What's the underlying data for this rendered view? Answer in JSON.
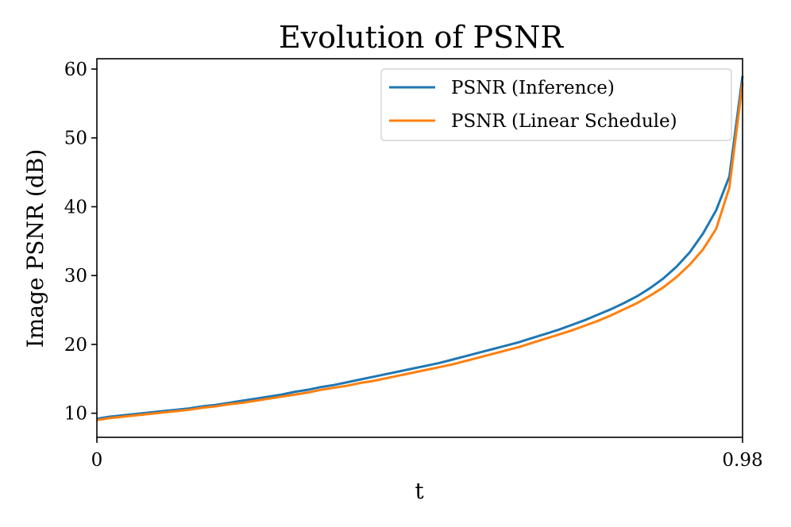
{
  "chart_data": {
    "type": "line",
    "title": "Evolution of PSNR",
    "xlabel": "t",
    "ylabel": "Image PSNR (dB)",
    "xlim": [
      0,
      0.98
    ],
    "ylim": [
      6.5,
      61.5
    ],
    "x_ticks": [
      {
        "value": 0,
        "label": "0"
      },
      {
        "value": 0.98,
        "label": "0.98"
      }
    ],
    "y_ticks": [
      {
        "value": 10,
        "label": "10"
      },
      {
        "value": 20,
        "label": "20"
      },
      {
        "value": 30,
        "label": "30"
      },
      {
        "value": 40,
        "label": "40"
      },
      {
        "value": 50,
        "label": "50"
      },
      {
        "value": 60,
        "label": "60"
      }
    ],
    "legend_position": "top-right",
    "grid": false,
    "x": [
      0,
      0.02,
      0.04,
      0.06,
      0.08,
      0.1,
      0.12,
      0.14,
      0.16,
      0.18,
      0.2,
      0.22,
      0.24,
      0.26,
      0.28,
      0.3,
      0.32,
      0.34,
      0.36,
      0.38,
      0.4,
      0.42,
      0.44,
      0.46,
      0.48,
      0.5,
      0.52,
      0.54,
      0.56,
      0.58,
      0.6,
      0.62,
      0.64,
      0.66,
      0.68,
      0.7,
      0.72,
      0.74,
      0.76,
      0.78,
      0.8,
      0.82,
      0.84,
      0.86,
      0.88,
      0.9,
      0.92,
      0.94,
      0.96,
      0.98
    ],
    "series": [
      {
        "name": "PSNR (Inference)",
        "color": "#1f77b4",
        "values": [
          9.2,
          9.5,
          9.7,
          9.9,
          10.1,
          10.3,
          10.5,
          10.7,
          11.0,
          11.2,
          11.5,
          11.8,
          12.1,
          12.4,
          12.7,
          13.1,
          13.4,
          13.8,
          14.1,
          14.5,
          14.9,
          15.3,
          15.7,
          16.1,
          16.5,
          16.9,
          17.3,
          17.8,
          18.3,
          18.8,
          19.3,
          19.8,
          20.3,
          20.9,
          21.5,
          22.1,
          22.8,
          23.5,
          24.3,
          25.1,
          26.0,
          27.0,
          28.2,
          29.6,
          31.3,
          33.4,
          36.1,
          39.5,
          44.4,
          59.0
        ]
      },
      {
        "name": "PSNR (Linear Schedule)",
        "color": "#ff7f0e",
        "values": [
          9.0,
          9.3,
          9.5,
          9.7,
          9.9,
          10.1,
          10.3,
          10.5,
          10.8,
          11.0,
          11.3,
          11.5,
          11.8,
          12.1,
          12.4,
          12.7,
          13.0,
          13.4,
          13.7,
          14.0,
          14.4,
          14.7,
          15.1,
          15.5,
          15.9,
          16.3,
          16.7,
          17.1,
          17.6,
          18.1,
          18.6,
          19.1,
          19.6,
          20.2,
          20.8,
          21.4,
          22.0,
          22.7,
          23.4,
          24.2,
          25.1,
          26.0,
          27.1,
          28.3,
          29.8,
          31.6,
          33.8,
          36.8,
          42.8,
          58.0
        ]
      }
    ]
  }
}
